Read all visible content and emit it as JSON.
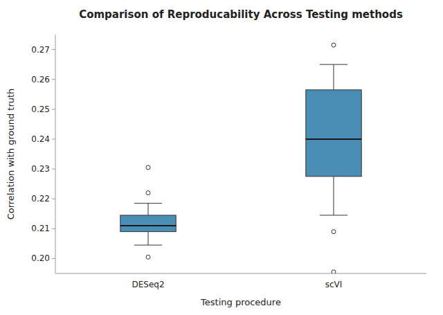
{
  "chart_data": {
    "type": "box",
    "title": "Comparison of Reproducability Across Testing methods",
    "xlabel": "Testing procedure",
    "ylabel": "Correlation with ground truth",
    "categories": [
      "DESeq2",
      "scVI"
    ],
    "boxes": [
      {
        "whislo": 0.2045,
        "q1": 0.209,
        "med": 0.211,
        "q3": 0.2145,
        "whishi": 0.2185,
        "fliers": [
          0.2305,
          0.222,
          0.2005
        ]
      },
      {
        "whislo": 0.2145,
        "q1": 0.2275,
        "med": 0.24,
        "q3": 0.2565,
        "whishi": 0.265,
        "fliers": [
          0.2715,
          0.209,
          0.1955
        ]
      }
    ],
    "color": "#4a8db5",
    "ylim": [
      0.195,
      0.275
    ],
    "yticks": [
      {
        "value": 0.2,
        "label": "0.20"
      },
      0.21,
      0.22,
      0.23,
      0.24,
      0.25,
      0.26,
      0.27
    ],
    "grid": false
  }
}
